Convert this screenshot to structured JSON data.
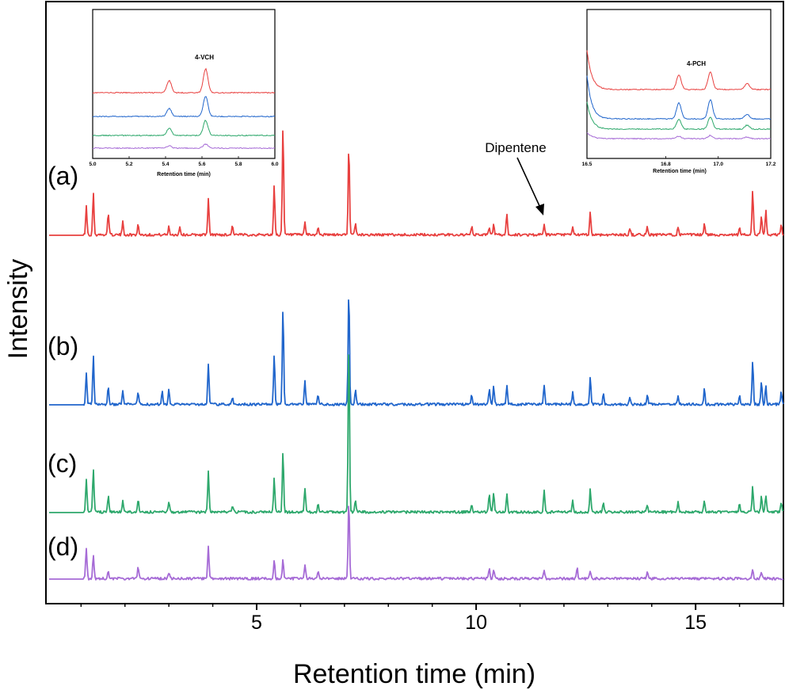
{
  "chart_data": {
    "type": "line",
    "xlabel": "Retention time (min)",
    "ylabel": "Intensity",
    "xlim": [
      0.2,
      17.0
    ],
    "x_ticks": [
      "5",
      "10",
      "15"
    ],
    "x_tick_values": [
      5,
      10,
      15
    ],
    "y_ticks_shown": false,
    "grid": false,
    "legend": "none",
    "series": [
      {
        "name": "(a)",
        "color": "#e8403f",
        "peaks": [
          [
            1.12,
            36
          ],
          [
            1.28,
            52
          ],
          [
            1.62,
            28
          ],
          [
            1.95,
            16
          ],
          [
            2.3,
            13
          ],
          [
            3.0,
            10
          ],
          [
            3.25,
            10
          ],
          [
            3.9,
            45
          ],
          [
            4.45,
            12
          ],
          [
            5.4,
            62
          ],
          [
            5.6,
            135
          ],
          [
            6.1,
            16
          ],
          [
            6.4,
            10
          ],
          [
            7.1,
            112
          ],
          [
            7.25,
            15
          ],
          [
            9.9,
            10
          ],
          [
            10.3,
            10
          ],
          [
            10.4,
            14
          ],
          [
            10.7,
            26
          ],
          [
            11.55,
            12
          ],
          [
            12.2,
            9
          ],
          [
            12.6,
            28
          ],
          [
            13.5,
            8
          ],
          [
            13.9,
            10
          ],
          [
            14.6,
            10
          ],
          [
            15.2,
            14
          ],
          [
            16.0,
            10
          ],
          [
            16.3,
            55
          ],
          [
            16.5,
            24
          ],
          [
            16.6,
            30
          ],
          [
            16.95,
            12
          ]
        ]
      },
      {
        "name": "(b)",
        "color": "#2166cc",
        "peaks": [
          [
            1.12,
            40
          ],
          [
            1.28,
            60
          ],
          [
            1.62,
            22
          ],
          [
            1.95,
            16
          ],
          [
            2.3,
            14
          ],
          [
            2.85,
            16
          ],
          [
            3.0,
            20
          ],
          [
            3.9,
            52
          ],
          [
            4.45,
            8
          ],
          [
            5.4,
            63
          ],
          [
            5.6,
            122
          ],
          [
            6.1,
            30
          ],
          [
            6.4,
            12
          ],
          [
            7.1,
            143
          ],
          [
            7.25,
            18
          ],
          [
            9.9,
            12
          ],
          [
            10.3,
            20
          ],
          [
            10.4,
            22
          ],
          [
            10.7,
            25
          ],
          [
            11.55,
            25
          ],
          [
            12.2,
            15
          ],
          [
            12.6,
            34
          ],
          [
            12.9,
            14
          ],
          [
            13.5,
            10
          ],
          [
            13.9,
            12
          ],
          [
            14.6,
            12
          ],
          [
            15.2,
            20
          ],
          [
            16.0,
            12
          ],
          [
            16.3,
            55
          ],
          [
            16.5,
            30
          ],
          [
            16.6,
            22
          ],
          [
            16.95,
            16
          ]
        ]
      },
      {
        "name": "(c)",
        "color": "#2ea86c",
        "peaks": [
          [
            1.12,
            40
          ],
          [
            1.28,
            55
          ],
          [
            1.62,
            20
          ],
          [
            1.95,
            14
          ],
          [
            2.3,
            16
          ],
          [
            3.0,
            12
          ],
          [
            3.9,
            52
          ],
          [
            4.45,
            8
          ],
          [
            5.4,
            43
          ],
          [
            5.6,
            77
          ],
          [
            6.1,
            30
          ],
          [
            6.4,
            12
          ],
          [
            7.1,
            218
          ],
          [
            7.25,
            16
          ],
          [
            9.9,
            10
          ],
          [
            10.3,
            22
          ],
          [
            10.4,
            24
          ],
          [
            10.7,
            22
          ],
          [
            11.55,
            28
          ],
          [
            12.2,
            14
          ],
          [
            12.6,
            30
          ],
          [
            12.9,
            12
          ],
          [
            13.9,
            10
          ],
          [
            14.6,
            12
          ],
          [
            15.2,
            14
          ],
          [
            16.0,
            10
          ],
          [
            16.3,
            32
          ],
          [
            16.5,
            20
          ],
          [
            16.6,
            22
          ],
          [
            16.95,
            12
          ]
        ]
      },
      {
        "name": "(d)",
        "color": "#a66bd6",
        "peaks": [
          [
            1.12,
            38
          ],
          [
            1.28,
            30
          ],
          [
            1.62,
            10
          ],
          [
            2.3,
            16
          ],
          [
            3.0,
            8
          ],
          [
            3.9,
            40
          ],
          [
            5.4,
            24
          ],
          [
            5.6,
            24
          ],
          [
            6.1,
            18
          ],
          [
            6.4,
            8
          ],
          [
            7.1,
            102
          ],
          [
            10.3,
            12
          ],
          [
            10.4,
            12
          ],
          [
            11.55,
            10
          ],
          [
            12.3,
            14
          ],
          [
            12.6,
            10
          ],
          [
            13.9,
            8
          ],
          [
            16.3,
            12
          ],
          [
            16.5,
            8
          ]
        ]
      }
    ],
    "annotations": [
      {
        "text": "Dipentene",
        "points_to_x": 11.55,
        "series": "(a)"
      }
    ],
    "insets": [
      {
        "peak_label": "4-VCH",
        "xlabel": "Retention time (min)",
        "x_ticks": [
          "5.0",
          "5.2",
          "5.4",
          "5.6",
          "5.8",
          "6.0"
        ],
        "xlim": [
          5.0,
          6.0
        ],
        "peaks_x": [
          5.42,
          5.62
        ],
        "colors": [
          "#e8403f",
          "#2166cc",
          "#2ea86c",
          "#a66bd6"
        ]
      },
      {
        "peak_label": "4-PCH",
        "xlabel": "Retention time (min)",
        "x_ticks": [
          "16.5",
          "16.8",
          "17.0",
          "17.2"
        ],
        "xlim": [
          16.5,
          17.2
        ],
        "peaks_x": [
          16.85,
          16.97,
          17.11
        ],
        "colors": [
          "#e8403f",
          "#2166cc",
          "#2ea86c",
          "#a66bd6"
        ]
      }
    ]
  }
}
